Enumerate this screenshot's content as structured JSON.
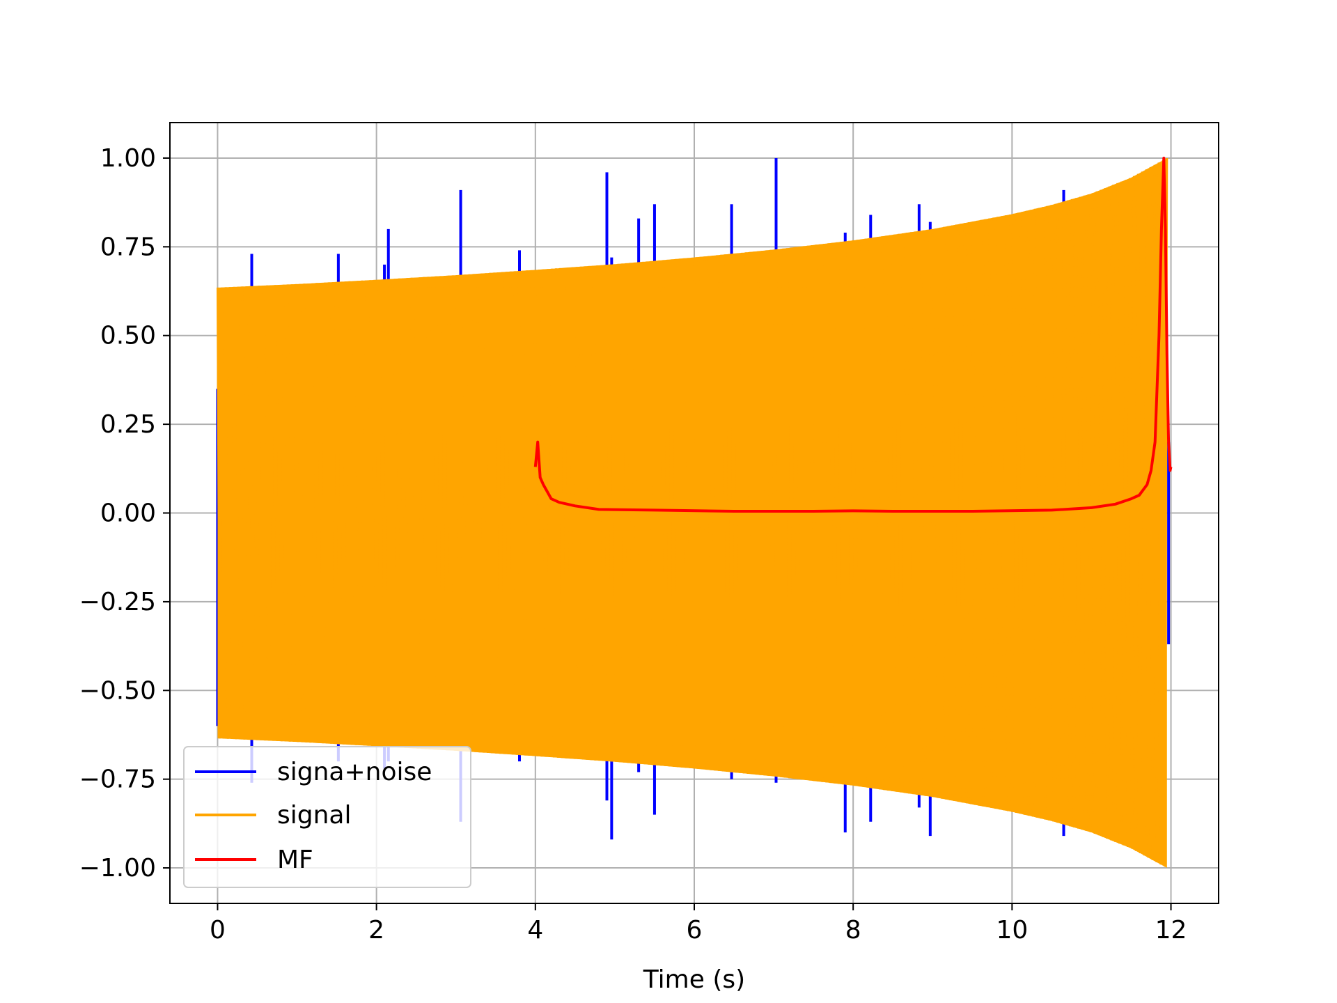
{
  "chart_data": {
    "type": "line",
    "title": "",
    "xlabel": "Time (s)",
    "ylabel": "",
    "xlim": [
      -0.6,
      12.6
    ],
    "ylim": [
      -1.1,
      1.1
    ],
    "x_ticks": [
      0,
      2,
      4,
      6,
      8,
      10,
      12
    ],
    "x_tick_labels": [
      "0",
      "2",
      "4",
      "6",
      "8",
      "10",
      "12"
    ],
    "y_ticks": [
      1.0,
      0.75,
      0.5,
      0.25,
      0.0,
      -0.25,
      -0.5,
      -0.75,
      -1.0
    ],
    "y_tick_labels": [
      "1.00",
      "0.75",
      "0.50",
      "0.25",
      "0.00",
      "−0.25",
      "−0.50",
      "−0.75",
      "−1.00"
    ],
    "grid": true,
    "legend_position": "bottom-left",
    "series": [
      {
        "name": "signa+noise",
        "color": "#0000ff",
        "spikes": [
          {
            "x": 0.0,
            "high": 0.35,
            "low": -0.6
          },
          {
            "x": 0.43,
            "high": 0.73,
            "low": -0.76
          },
          {
            "x": 1.52,
            "high": 0.73,
            "low": -0.7
          },
          {
            "x": 2.1,
            "high": 0.7,
            "low": -0.72
          },
          {
            "x": 2.15,
            "high": 0.8,
            "low": -0.7
          },
          {
            "x": 3.06,
            "high": 0.91,
            "low": -0.87
          },
          {
            "x": 3.8,
            "high": 0.74,
            "low": -0.7
          },
          {
            "x": 4.9,
            "high": 0.96,
            "low": -0.81
          },
          {
            "x": 4.96,
            "high": 0.72,
            "low": -0.92
          },
          {
            "x": 5.3,
            "high": 0.83,
            "low": -0.73
          },
          {
            "x": 5.5,
            "high": 0.87,
            "low": -0.85
          },
          {
            "x": 6.47,
            "high": 0.87,
            "low": -0.75
          },
          {
            "x": 7.03,
            "high": 1.0,
            "low": -0.76
          },
          {
            "x": 7.9,
            "high": 0.79,
            "low": -0.9
          },
          {
            "x": 8.22,
            "high": 0.84,
            "low": -0.87
          },
          {
            "x": 8.83,
            "high": 0.87,
            "low": -0.83
          },
          {
            "x": 8.97,
            "high": 0.82,
            "low": -0.91
          },
          {
            "x": 10.65,
            "high": 0.91,
            "low": -0.91
          },
          {
            "x": 11.97,
            "high": 0.2,
            "low": -0.37
          }
        ]
      },
      {
        "name": "signal",
        "color": "#ffa500",
        "envelope": {
          "x": [
            0.0,
            1.0,
            2.0,
            3.0,
            4.0,
            5.0,
            6.0,
            7.0,
            8.0,
            9.0,
            10.0,
            10.5,
            11.0,
            11.5,
            11.95
          ],
          "upper": [
            0.635,
            0.645,
            0.657,
            0.67,
            0.685,
            0.701,
            0.72,
            0.742,
            0.768,
            0.8,
            0.842,
            0.868,
            0.9,
            0.945,
            1.0
          ]
        }
      },
      {
        "name": "MF",
        "color": "#ff0000",
        "x": [
          4.0,
          4.03,
          4.06,
          4.1,
          4.15,
          4.2,
          4.3,
          4.5,
          4.8,
          5.5,
          6.5,
          7.5,
          8.0,
          8.5,
          9.5,
          10.5,
          11.0,
          11.3,
          11.5,
          11.6,
          11.7,
          11.75,
          11.8,
          11.85,
          11.88,
          11.91,
          11.93,
          11.95,
          11.97,
          11.99,
          12.0
        ],
        "values": [
          0.13,
          0.2,
          0.1,
          0.08,
          0.06,
          0.04,
          0.03,
          0.02,
          0.01,
          0.008,
          0.005,
          0.005,
          0.006,
          0.005,
          0.005,
          0.008,
          0.015,
          0.025,
          0.04,
          0.05,
          0.08,
          0.12,
          0.2,
          0.5,
          0.8,
          1.0,
          0.8,
          0.45,
          0.2,
          0.12,
          0.13
        ]
      }
    ]
  }
}
